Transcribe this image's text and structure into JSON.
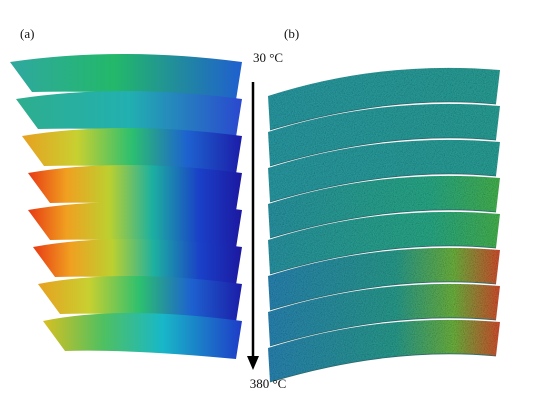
{
  "panel_a_label": "(a)",
  "panel_b_label": "(b)",
  "arrow": {
    "start_label": "30 °C",
    "end_label": "380 °C"
  }
}
